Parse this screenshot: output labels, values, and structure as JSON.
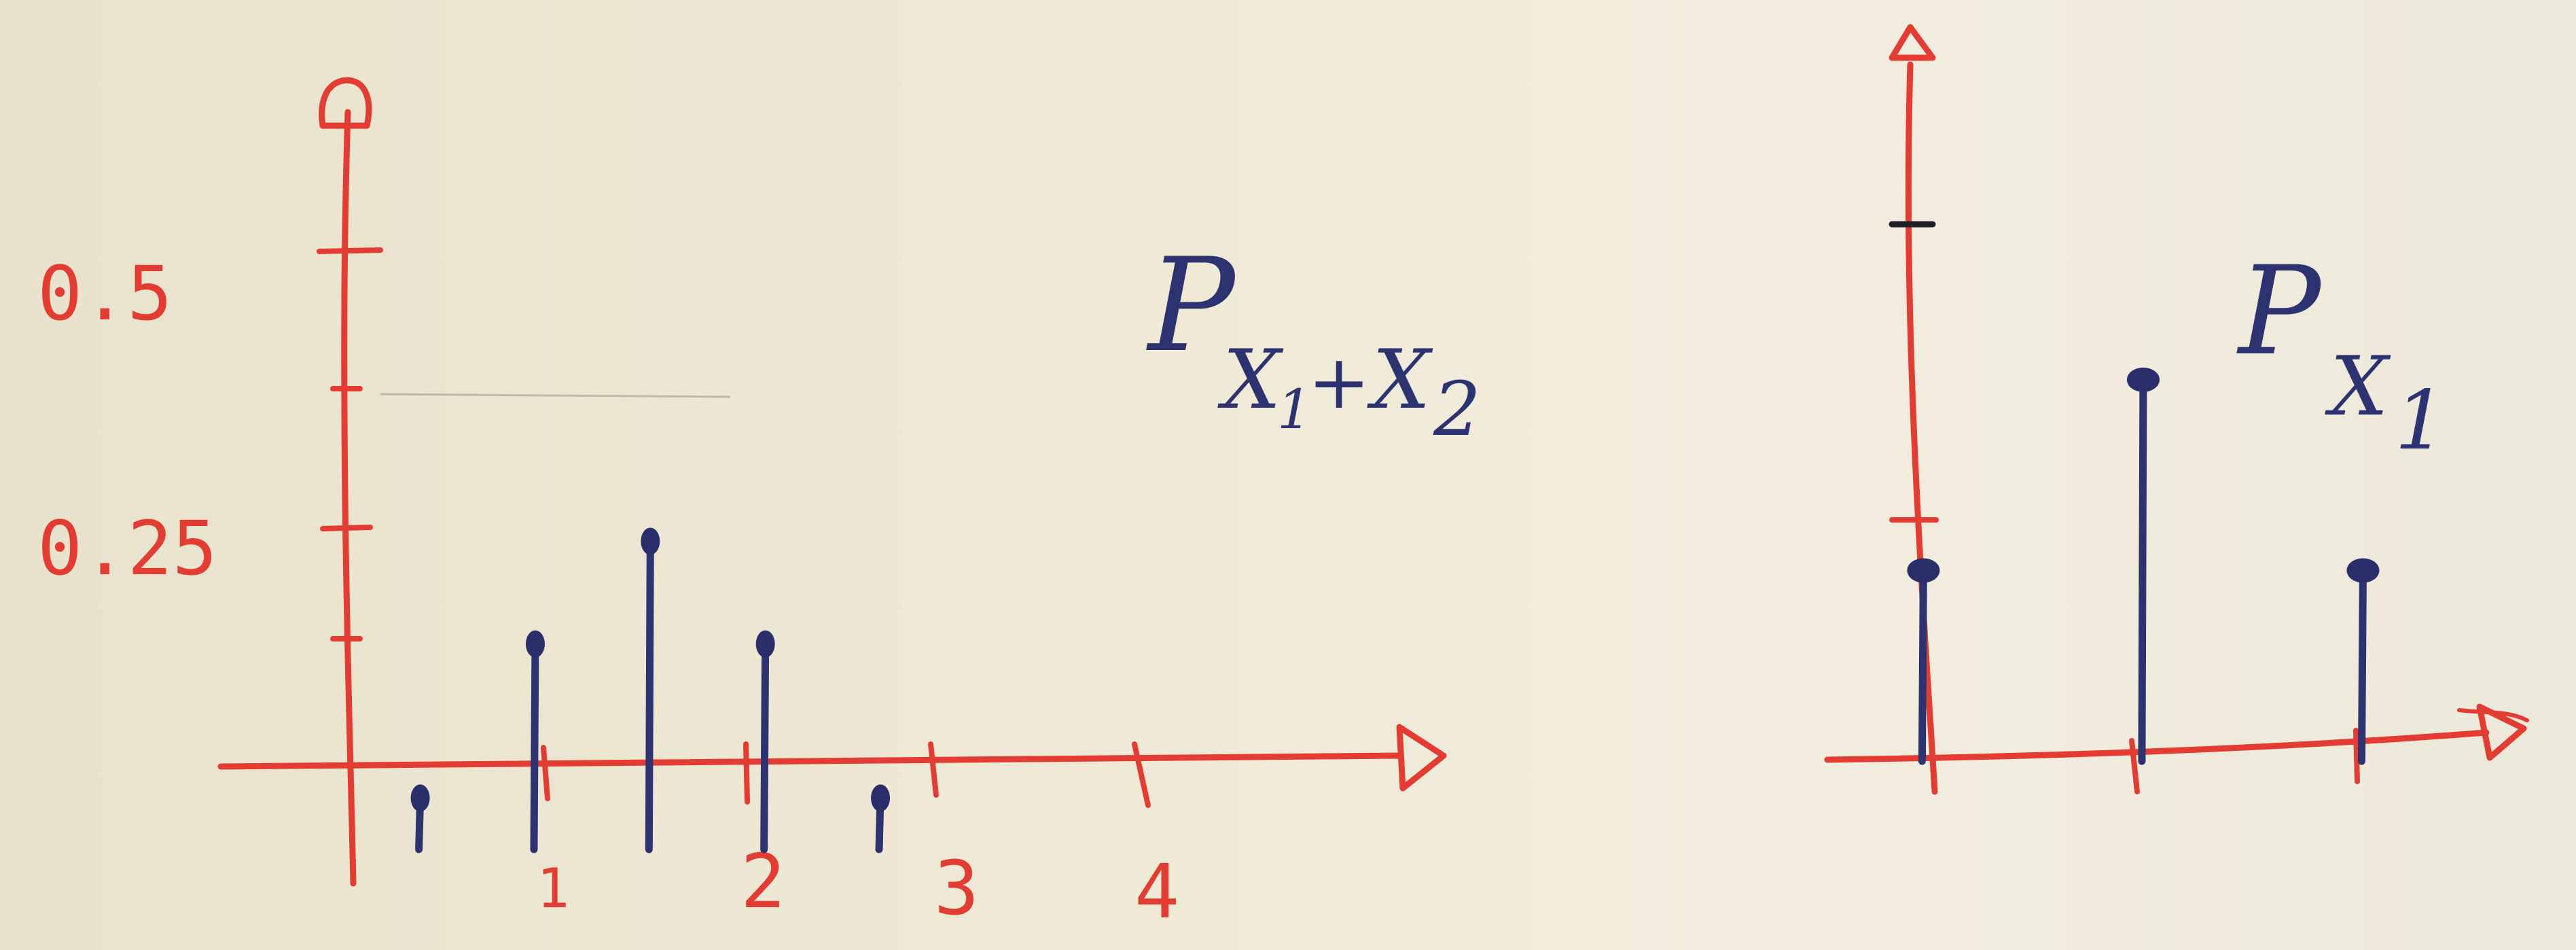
{
  "chart_data": [
    {
      "type": "bar",
      "title": "P X1+X2",
      "title_parts": {
        "main": "P",
        "sub1": "X",
        "sub1_index": "1",
        "op": "+",
        "sub2": "X",
        "sub2_index": "2"
      },
      "x": [
        0,
        1,
        2,
        3,
        4
      ],
      "x_tick_labels": [
        "1",
        "2",
        "3",
        "4"
      ],
      "x_tick_values": [
        1,
        2,
        3,
        4
      ],
      "values": [
        0.0625,
        0.25,
        0.375,
        0.25,
        0.0625
      ],
      "y_tick_labels": [
        "0.5",
        "0.25"
      ],
      "y_tick_values": [
        0.5,
        0.25
      ],
      "y_minor_ticks": [
        0.125,
        0.375
      ],
      "xlim": [
        -0.6,
        5.6
      ],
      "ylim": [
        -0.12,
        0.98
      ],
      "grid": false
    },
    {
      "type": "bar",
      "title": "P X1",
      "title_parts": {
        "main": "P",
        "sub1": "X",
        "sub1_index": "1"
      },
      "x": [
        0,
        1,
        2
      ],
      "values": [
        0.25,
        0.5,
        0.25
      ],
      "y_tick_values": [
        0.25,
        0.5
      ],
      "xlim": [
        -0.4,
        3.0
      ],
      "ylim": [
        -0.04,
        0.98
      ],
      "grid": false
    }
  ],
  "colors": {
    "axis": "#e23c33",
    "stem": "#2d3270",
    "paper": "#efe9d6"
  }
}
